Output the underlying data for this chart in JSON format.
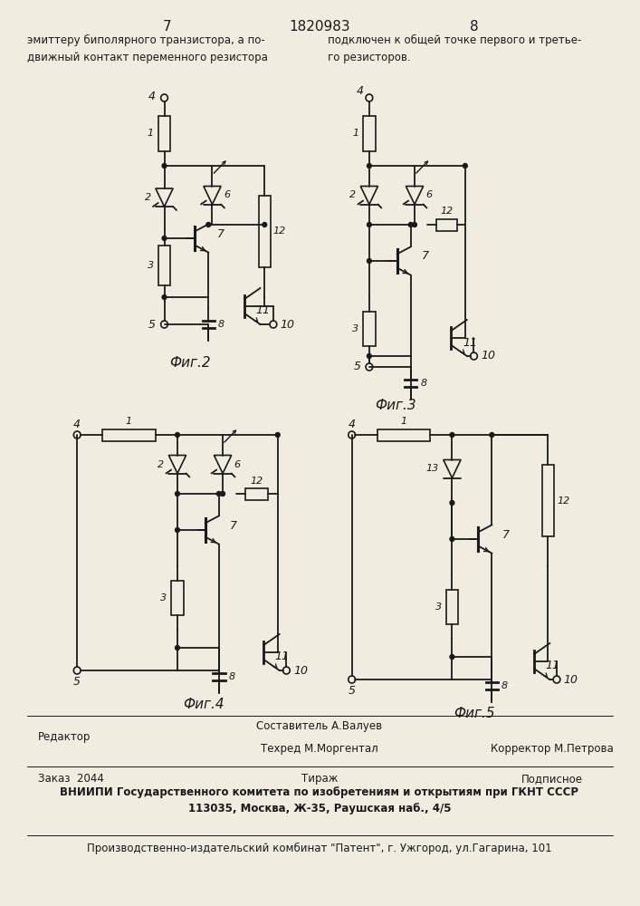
{
  "page_number_left": "7",
  "page_number_center": "1820983",
  "page_number_right": "8",
  "text_left": "эмиттеру биполярного транзистора, а по-\nдвижный контакт переменного резистора",
  "text_right": "подключен к общей точке первого и третье-\nго резисторов.",
  "fig2_label": "Фиг.2",
  "fig3_label": "Фиг.3",
  "fig4_label": "Фиг.4",
  "fig5_label": "Фиг.5",
  "footer_editor": "Редактор",
  "footer_composer": "Составитель А.Валуев",
  "footer_techred": "Техред М.Моргентал",
  "footer_corrector": "Корректор М.Петрова",
  "footer_order": "Заказ  2044",
  "footer_print": "Тираж",
  "footer_signed": "Подписное",
  "footer_vniipи": "ВНИИПИ Государственного комитета по изобретениям и открытиям при ГКНТ СССР",
  "footer_address": "113035, Москва, Ж-35, Раушская наб., 4/5",
  "footer_publisher": "Производственно-издательский комбинат \"Патент\", г. Ужгород, ул.Гагарина, 101",
  "bg_color": "#f0ece0",
  "text_color": "#1a1a1a"
}
